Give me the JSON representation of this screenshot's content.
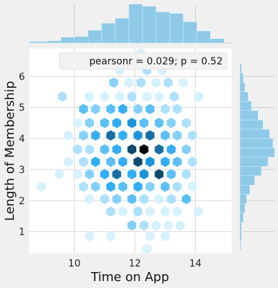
{
  "chart_data": {
    "type": "hexbin-jointplot",
    "xlabel": "Time on App",
    "ylabel": "Length of Membership",
    "xlim": [
      8.5,
      15.2
    ],
    "ylim": [
      0.3,
      6.9
    ],
    "x_ticks": [
      10,
      12,
      14
    ],
    "y_ticks": [
      1,
      2,
      3,
      4,
      5,
      6
    ],
    "annotation": "pearsonr = 0.029; p = 0.52",
    "grid": true,
    "legend_position": "top-right",
    "colors": {
      "hex_low": "#d6f1ff",
      "hex_mid": "#1fa6f5",
      "hex_high": "#000000",
      "histogram": "#8ecae8",
      "plot_bg": "#ffffff",
      "page_bg": "#f0f0f0",
      "grid": "#d9d9d9"
    },
    "hexbins": [
      {
        "x": 12.2,
        "y": 6.75,
        "count": 1
      },
      {
        "x": 11.5,
        "y": 6.2,
        "count": 1
      },
      {
        "x": 12.4,
        "y": 6.2,
        "count": 2
      },
      {
        "x": 12.9,
        "y": 6.2,
        "count": 1
      },
      {
        "x": 11.3,
        "y": 5.8,
        "count": 3
      },
      {
        "x": 11.8,
        "y": 5.8,
        "count": 1
      },
      {
        "x": 12.2,
        "y": 5.8,
        "count": 2
      },
      {
        "x": 12.7,
        "y": 5.8,
        "count": 1
      },
      {
        "x": 13.1,
        "y": 5.8,
        "count": 2
      },
      {
        "x": 13.6,
        "y": 5.8,
        "count": 1
      },
      {
        "x": 9.6,
        "y": 5.35,
        "count": 2
      },
      {
        "x": 10.5,
        "y": 5.35,
        "count": 1
      },
      {
        "x": 11.0,
        "y": 5.35,
        "count": 1
      },
      {
        "x": 11.5,
        "y": 5.35,
        "count": 1
      },
      {
        "x": 11.9,
        "y": 5.35,
        "count": 2
      },
      {
        "x": 12.4,
        "y": 5.35,
        "count": 1
      },
      {
        "x": 12.8,
        "y": 5.35,
        "count": 1
      },
      {
        "x": 13.3,
        "y": 5.35,
        "count": 2
      },
      {
        "x": 14.1,
        "y": 5.35,
        "count": 1
      },
      {
        "x": 10.3,
        "y": 4.95,
        "count": 4
      },
      {
        "x": 10.7,
        "y": 4.95,
        "count": 3
      },
      {
        "x": 11.2,
        "y": 4.95,
        "count": 4
      },
      {
        "x": 11.6,
        "y": 4.95,
        "count": 5
      },
      {
        "x": 12.1,
        "y": 4.95,
        "count": 3
      },
      {
        "x": 12.5,
        "y": 4.95,
        "count": 4
      },
      {
        "x": 13.0,
        "y": 4.95,
        "count": 2
      },
      {
        "x": 13.4,
        "y": 4.95,
        "count": 2
      },
      {
        "x": 10.1,
        "y": 4.5,
        "count": 1
      },
      {
        "x": 10.5,
        "y": 4.5,
        "count": 3
      },
      {
        "x": 11.0,
        "y": 4.5,
        "count": 4
      },
      {
        "x": 11.4,
        "y": 4.5,
        "count": 5
      },
      {
        "x": 11.9,
        "y": 4.5,
        "count": 6
      },
      {
        "x": 12.3,
        "y": 4.5,
        "count": 4
      },
      {
        "x": 12.8,
        "y": 4.5,
        "count": 4
      },
      {
        "x": 13.2,
        "y": 4.5,
        "count": 3
      },
      {
        "x": 13.7,
        "y": 4.5,
        "count": 2
      },
      {
        "x": 9.8,
        "y": 4.1,
        "count": 1
      },
      {
        "x": 10.3,
        "y": 4.1,
        "count": 3
      },
      {
        "x": 10.7,
        "y": 4.1,
        "count": 5
      },
      {
        "x": 11.2,
        "y": 4.1,
        "count": 7
      },
      {
        "x": 11.6,
        "y": 4.1,
        "count": 5
      },
      {
        "x": 12.1,
        "y": 4.1,
        "count": 6
      },
      {
        "x": 12.5,
        "y": 4.1,
        "count": 7
      },
      {
        "x": 13.0,
        "y": 4.1,
        "count": 4
      },
      {
        "x": 13.4,
        "y": 4.1,
        "count": 3
      },
      {
        "x": 13.9,
        "y": 4.1,
        "count": 2
      },
      {
        "x": 10.1,
        "y": 3.65,
        "count": 2
      },
      {
        "x": 10.5,
        "y": 3.65,
        "count": 2
      },
      {
        "x": 11.0,
        "y": 3.65,
        "count": 4
      },
      {
        "x": 11.4,
        "y": 3.65,
        "count": 5
      },
      {
        "x": 11.9,
        "y": 3.65,
        "count": 8
      },
      {
        "x": 12.3,
        "y": 3.65,
        "count": 10
      },
      {
        "x": 12.8,
        "y": 3.65,
        "count": 7
      },
      {
        "x": 13.2,
        "y": 3.65,
        "count": 5
      },
      {
        "x": 13.7,
        "y": 3.65,
        "count": 3
      },
      {
        "x": 9.8,
        "y": 3.25,
        "count": 1
      },
      {
        "x": 10.3,
        "y": 3.25,
        "count": 2
      },
      {
        "x": 10.7,
        "y": 3.25,
        "count": 5
      },
      {
        "x": 11.2,
        "y": 3.25,
        "count": 4
      },
      {
        "x": 11.6,
        "y": 3.25,
        "count": 5
      },
      {
        "x": 12.1,
        "y": 3.25,
        "count": 8
      },
      {
        "x": 12.5,
        "y": 3.25,
        "count": 6
      },
      {
        "x": 13.0,
        "y": 3.25,
        "count": 5
      },
      {
        "x": 13.4,
        "y": 3.25,
        "count": 4
      },
      {
        "x": 13.9,
        "y": 3.25,
        "count": 2
      },
      {
        "x": 9.5,
        "y": 2.85,
        "count": 1
      },
      {
        "x": 10.1,
        "y": 2.85,
        "count": 1
      },
      {
        "x": 10.5,
        "y": 2.85,
        "count": 3
      },
      {
        "x": 11.0,
        "y": 2.85,
        "count": 5
      },
      {
        "x": 11.4,
        "y": 2.85,
        "count": 7
      },
      {
        "x": 11.9,
        "y": 2.85,
        "count": 5
      },
      {
        "x": 12.3,
        "y": 2.85,
        "count": 6
      },
      {
        "x": 12.8,
        "y": 2.85,
        "count": 8
      },
      {
        "x": 13.2,
        "y": 2.85,
        "count": 4
      },
      {
        "x": 13.7,
        "y": 2.85,
        "count": 2
      },
      {
        "x": 8.9,
        "y": 2.45,
        "count": 1
      },
      {
        "x": 10.3,
        "y": 2.45,
        "count": 2
      },
      {
        "x": 10.7,
        "y": 2.45,
        "count": 3
      },
      {
        "x": 11.2,
        "y": 2.45,
        "count": 5
      },
      {
        "x": 11.6,
        "y": 2.45,
        "count": 4
      },
      {
        "x": 12.1,
        "y": 2.45,
        "count": 5
      },
      {
        "x": 12.5,
        "y": 2.45,
        "count": 3
      },
      {
        "x": 13.0,
        "y": 2.45,
        "count": 4
      },
      {
        "x": 13.4,
        "y": 2.45,
        "count": 2
      },
      {
        "x": 13.9,
        "y": 2.45,
        "count": 1
      },
      {
        "x": 10.5,
        "y": 2.05,
        "count": 1
      },
      {
        "x": 11.0,
        "y": 2.05,
        "count": 2
      },
      {
        "x": 11.4,
        "y": 2.05,
        "count": 3
      },
      {
        "x": 11.9,
        "y": 2.05,
        "count": 4
      },
      {
        "x": 12.3,
        "y": 2.05,
        "count": 2
      },
      {
        "x": 12.8,
        "y": 2.05,
        "count": 1
      },
      {
        "x": 13.2,
        "y": 2.05,
        "count": 2
      },
      {
        "x": 13.7,
        "y": 2.05,
        "count": 4
      },
      {
        "x": 11.2,
        "y": 1.65,
        "count": 2
      },
      {
        "x": 11.6,
        "y": 1.65,
        "count": 1
      },
      {
        "x": 12.1,
        "y": 1.65,
        "count": 2
      },
      {
        "x": 12.5,
        "y": 1.65,
        "count": 1
      },
      {
        "x": 13.0,
        "y": 1.65,
        "count": 1
      },
      {
        "x": 13.4,
        "y": 1.65,
        "count": 1
      },
      {
        "x": 14.1,
        "y": 1.65,
        "count": 1
      },
      {
        "x": 11.9,
        "y": 1.2,
        "count": 3
      },
      {
        "x": 12.3,
        "y": 1.2,
        "count": 2
      },
      {
        "x": 12.7,
        "y": 1.2,
        "count": 1
      },
      {
        "x": 13.1,
        "y": 1.2,
        "count": 1
      },
      {
        "x": 13.5,
        "y": 1.2,
        "count": 1
      },
      {
        "x": 10.5,
        "y": 0.85,
        "count": 1
      },
      {
        "x": 11.2,
        "y": 0.85,
        "count": 1
      },
      {
        "x": 12.5,
        "y": 0.85,
        "count": 1
      },
      {
        "x": 13.0,
        "y": 0.85,
        "count": 1
      },
      {
        "x": 12.4,
        "y": 0.45,
        "count": 1
      }
    ],
    "x_marginal": {
      "bin_edges": [
        8.2,
        8.65,
        9.1,
        9.55,
        10.0,
        10.45,
        10.9,
        11.35,
        11.8,
        12.25,
        12.7,
        13.15,
        13.6,
        14.05,
        14.5,
        14.95
      ],
      "counts": [
        2,
        2,
        3,
        8,
        9,
        18,
        28,
        35,
        55,
        52,
        44,
        42,
        30,
        17,
        6
      ]
    },
    "y_marginal": {
      "bin_edges": [
        0.4,
        0.7,
        1.0,
        1.3,
        1.6,
        1.9,
        2.2,
        2.5,
        2.8,
        3.1,
        3.4,
        3.7,
        4.0,
        4.3,
        4.6,
        4.9,
        5.2,
        5.5,
        5.8,
        6.1,
        6.4
      ],
      "counts": [
        1,
        2,
        2,
        4,
        6,
        8,
        12,
        18,
        26,
        34,
        42,
        40,
        36,
        28,
        22,
        14,
        10,
        6,
        4,
        2
      ]
    }
  }
}
